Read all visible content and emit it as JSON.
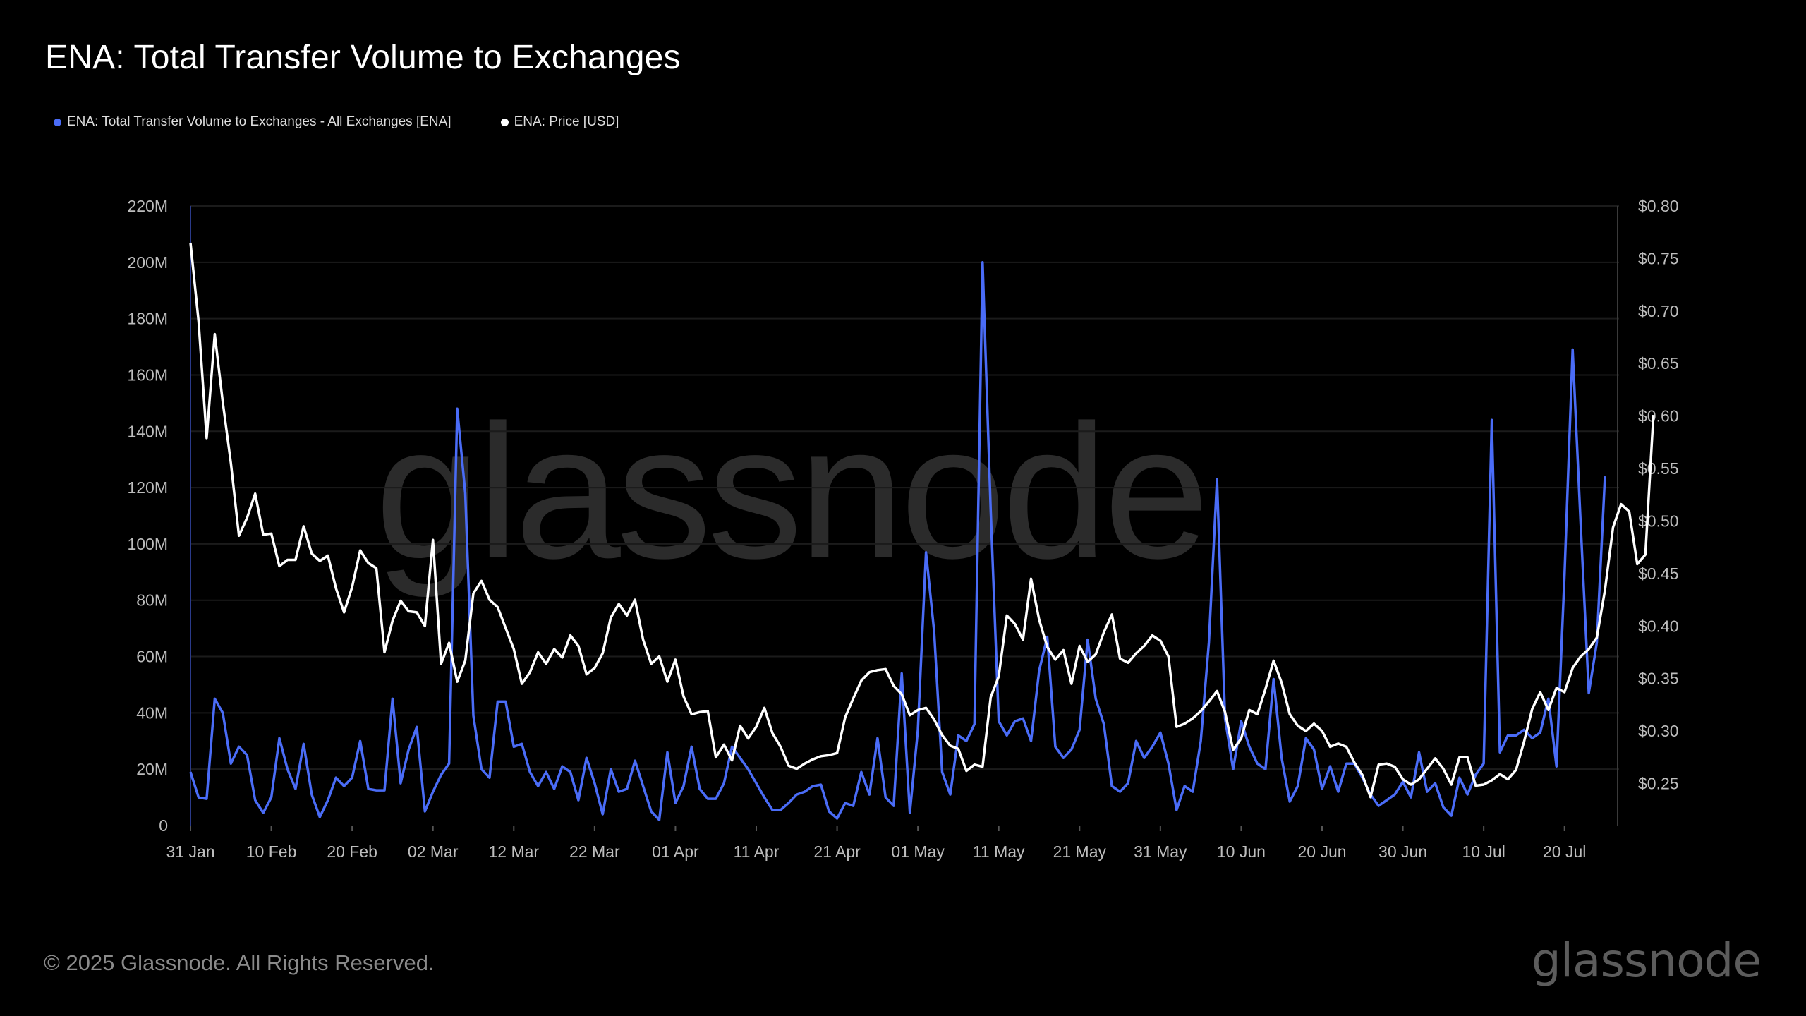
{
  "title": "ENA: Total Transfer Volume to Exchanges",
  "footer": {
    "copyright": "© 2025 Glassnode. All Rights Reserved.",
    "brand": "glassnode"
  },
  "watermark": "glassnode",
  "colors": {
    "background": "#000000",
    "volume": "#4a6cf7",
    "price": "#ffffff",
    "grid": "#1b1b1b",
    "axis_text": "#bdbdbd"
  },
  "chart_data": {
    "type": "line",
    "title": "ENA: Total Transfer Volume to Exchanges",
    "legend_position": "top-left",
    "grid": true,
    "x_tick_labels": [
      "31 Jan",
      "10 Feb",
      "20 Feb",
      "02 Mar",
      "12 Mar",
      "22 Mar",
      "01 Apr",
      "11 Apr",
      "21 Apr",
      "01 May",
      "11 May",
      "21 May",
      "31 May",
      "10 Jun",
      "20 Jun",
      "30 Jun",
      "10 Jul",
      "20 Jul"
    ],
    "x_tick_days": [
      0,
      10,
      20,
      30,
      40,
      50,
      60,
      70,
      80,
      90,
      100,
      110,
      120,
      130,
      140,
      150,
      160,
      170
    ],
    "x_start_date": "31 Jan",
    "left_axis": {
      "ticks": [
        "0",
        "20M",
        "40M",
        "60M",
        "80M",
        "100M",
        "120M",
        "140M",
        "160M",
        "180M",
        "200M",
        "220M"
      ],
      "ylim": [
        0,
        220
      ]
    },
    "right_axis": {
      "ticks": [
        "$0.25",
        "$0.30",
        "$0.35",
        "$0.40",
        "$0.45",
        "$0.50",
        "$0.55",
        "$0.60",
        "$0.65",
        "$0.70",
        "$0.75",
        "$0.80"
      ],
      "ylim": [
        0.21,
        0.8
      ]
    },
    "series": [
      {
        "name": "ENA: Total Transfer Volume to Exchanges - All Exchanges [ENA]",
        "axis": "left",
        "unit": "M",
        "color": "#4a6cf7",
        "values": [
          19,
          10,
          9.5,
          45,
          40,
          22,
          28,
          25,
          9,
          4.5,
          10,
          31,
          20,
          13,
          29,
          11,
          3,
          9,
          17,
          14,
          17,
          30,
          13,
          12.5,
          12.5,
          45,
          15,
          27,
          35,
          5,
          12,
          18,
          22,
          148,
          118,
          39,
          20,
          17,
          44,
          44,
          28,
          29,
          19,
          14,
          19,
          13,
          21,
          19,
          9,
          24,
          15,
          4,
          20,
          12,
          13,
          23,
          14,
          5,
          2,
          26,
          8,
          14,
          28,
          13,
          9.5,
          9.5,
          15,
          28,
          24,
          20,
          15,
          10,
          5.5,
          5.5,
          8,
          11,
          12,
          14,
          14.5,
          5,
          2.5,
          8,
          7,
          19,
          11,
          31,
          10,
          7,
          54,
          4.5,
          34,
          97,
          69,
          19,
          11,
          32,
          30,
          36,
          200,
          112,
          37,
          32,
          37,
          38,
          30,
          55,
          67,
          28,
          24,
          27,
          34,
          66,
          45,
          36,
          14,
          12,
          15,
          30,
          24,
          28,
          33,
          22,
          5.5,
          14,
          12,
          30,
          65,
          123,
          38,
          20,
          37,
          28,
          22,
          20,
          52,
          24,
          8.5,
          14,
          31,
          27,
          13,
          21,
          12,
          22,
          22,
          17,
          11,
          7,
          9,
          11,
          15.5,
          10,
          26,
          12,
          15,
          6.5,
          3.5,
          17,
          11,
          18,
          22,
          144,
          26,
          32,
          32,
          34,
          31,
          33,
          45,
          21,
          89,
          169,
          107,
          47,
          65,
          124
        ]
      },
      {
        "name": "ENA: Price [USD]",
        "axis": "right",
        "unit": "USD",
        "color": "#ffffff",
        "values": [
          0.765,
          0.69,
          0.579,
          0.678,
          0.613,
          0.555,
          0.486,
          0.503,
          0.526,
          0.487,
          0.488,
          0.457,
          0.463,
          0.463,
          0.495,
          0.469,
          0.462,
          0.467,
          0.436,
          0.413,
          0.437,
          0.472,
          0.46,
          0.455,
          0.375,
          0.405,
          0.424,
          0.414,
          0.413,
          0.4,
          0.482,
          0.364,
          0.384,
          0.347,
          0.367,
          0.431,
          0.443,
          0.425,
          0.418,
          0.398,
          0.378,
          0.345,
          0.356,
          0.375,
          0.364,
          0.378,
          0.37,
          0.391,
          0.381,
          0.354,
          0.36,
          0.374,
          0.408,
          0.421,
          0.41,
          0.425,
          0.387,
          0.364,
          0.371,
          0.347,
          0.368,
          0.333,
          0.316,
          0.318,
          0.319,
          0.275,
          0.287,
          0.272,
          0.305,
          0.293,
          0.304,
          0.322,
          0.298,
          0.285,
          0.267,
          0.264,
          0.269,
          0.273,
          0.276,
          0.277,
          0.279,
          0.313,
          0.331,
          0.348,
          0.356,
          0.358,
          0.359,
          0.343,
          0.335,
          0.315,
          0.32,
          0.322,
          0.311,
          0.296,
          0.286,
          0.283,
          0.262,
          0.268,
          0.266,
          0.332,
          0.352,
          0.41,
          0.402,
          0.387,
          0.445,
          0.406,
          0.38,
          0.368,
          0.377,
          0.345,
          0.381,
          0.366,
          0.373,
          0.394,
          0.411,
          0.369,
          0.365,
          0.374,
          0.381,
          0.391,
          0.386,
          0.371,
          0.304,
          0.307,
          0.312,
          0.319,
          0.328,
          0.338,
          0.318,
          0.282,
          0.293,
          0.32,
          0.316,
          0.34,
          0.367,
          0.346,
          0.316,
          0.305,
          0.3,
          0.307,
          0.3,
          0.285,
          0.288,
          0.285,
          0.27,
          0.258,
          0.237,
          0.268,
          0.269,
          0.266,
          0.254,
          0.249,
          0.254,
          0.264,
          0.274,
          0.264,
          0.249,
          0.275,
          0.275,
          0.248,
          0.249,
          0.253,
          0.259,
          0.254,
          0.263,
          0.29,
          0.321,
          0.337,
          0.32,
          0.341,
          0.337,
          0.36,
          0.371,
          0.378,
          0.389,
          0.434,
          0.494,
          0.516,
          0.509,
          0.459,
          0.468,
          0.601
        ]
      }
    ]
  }
}
